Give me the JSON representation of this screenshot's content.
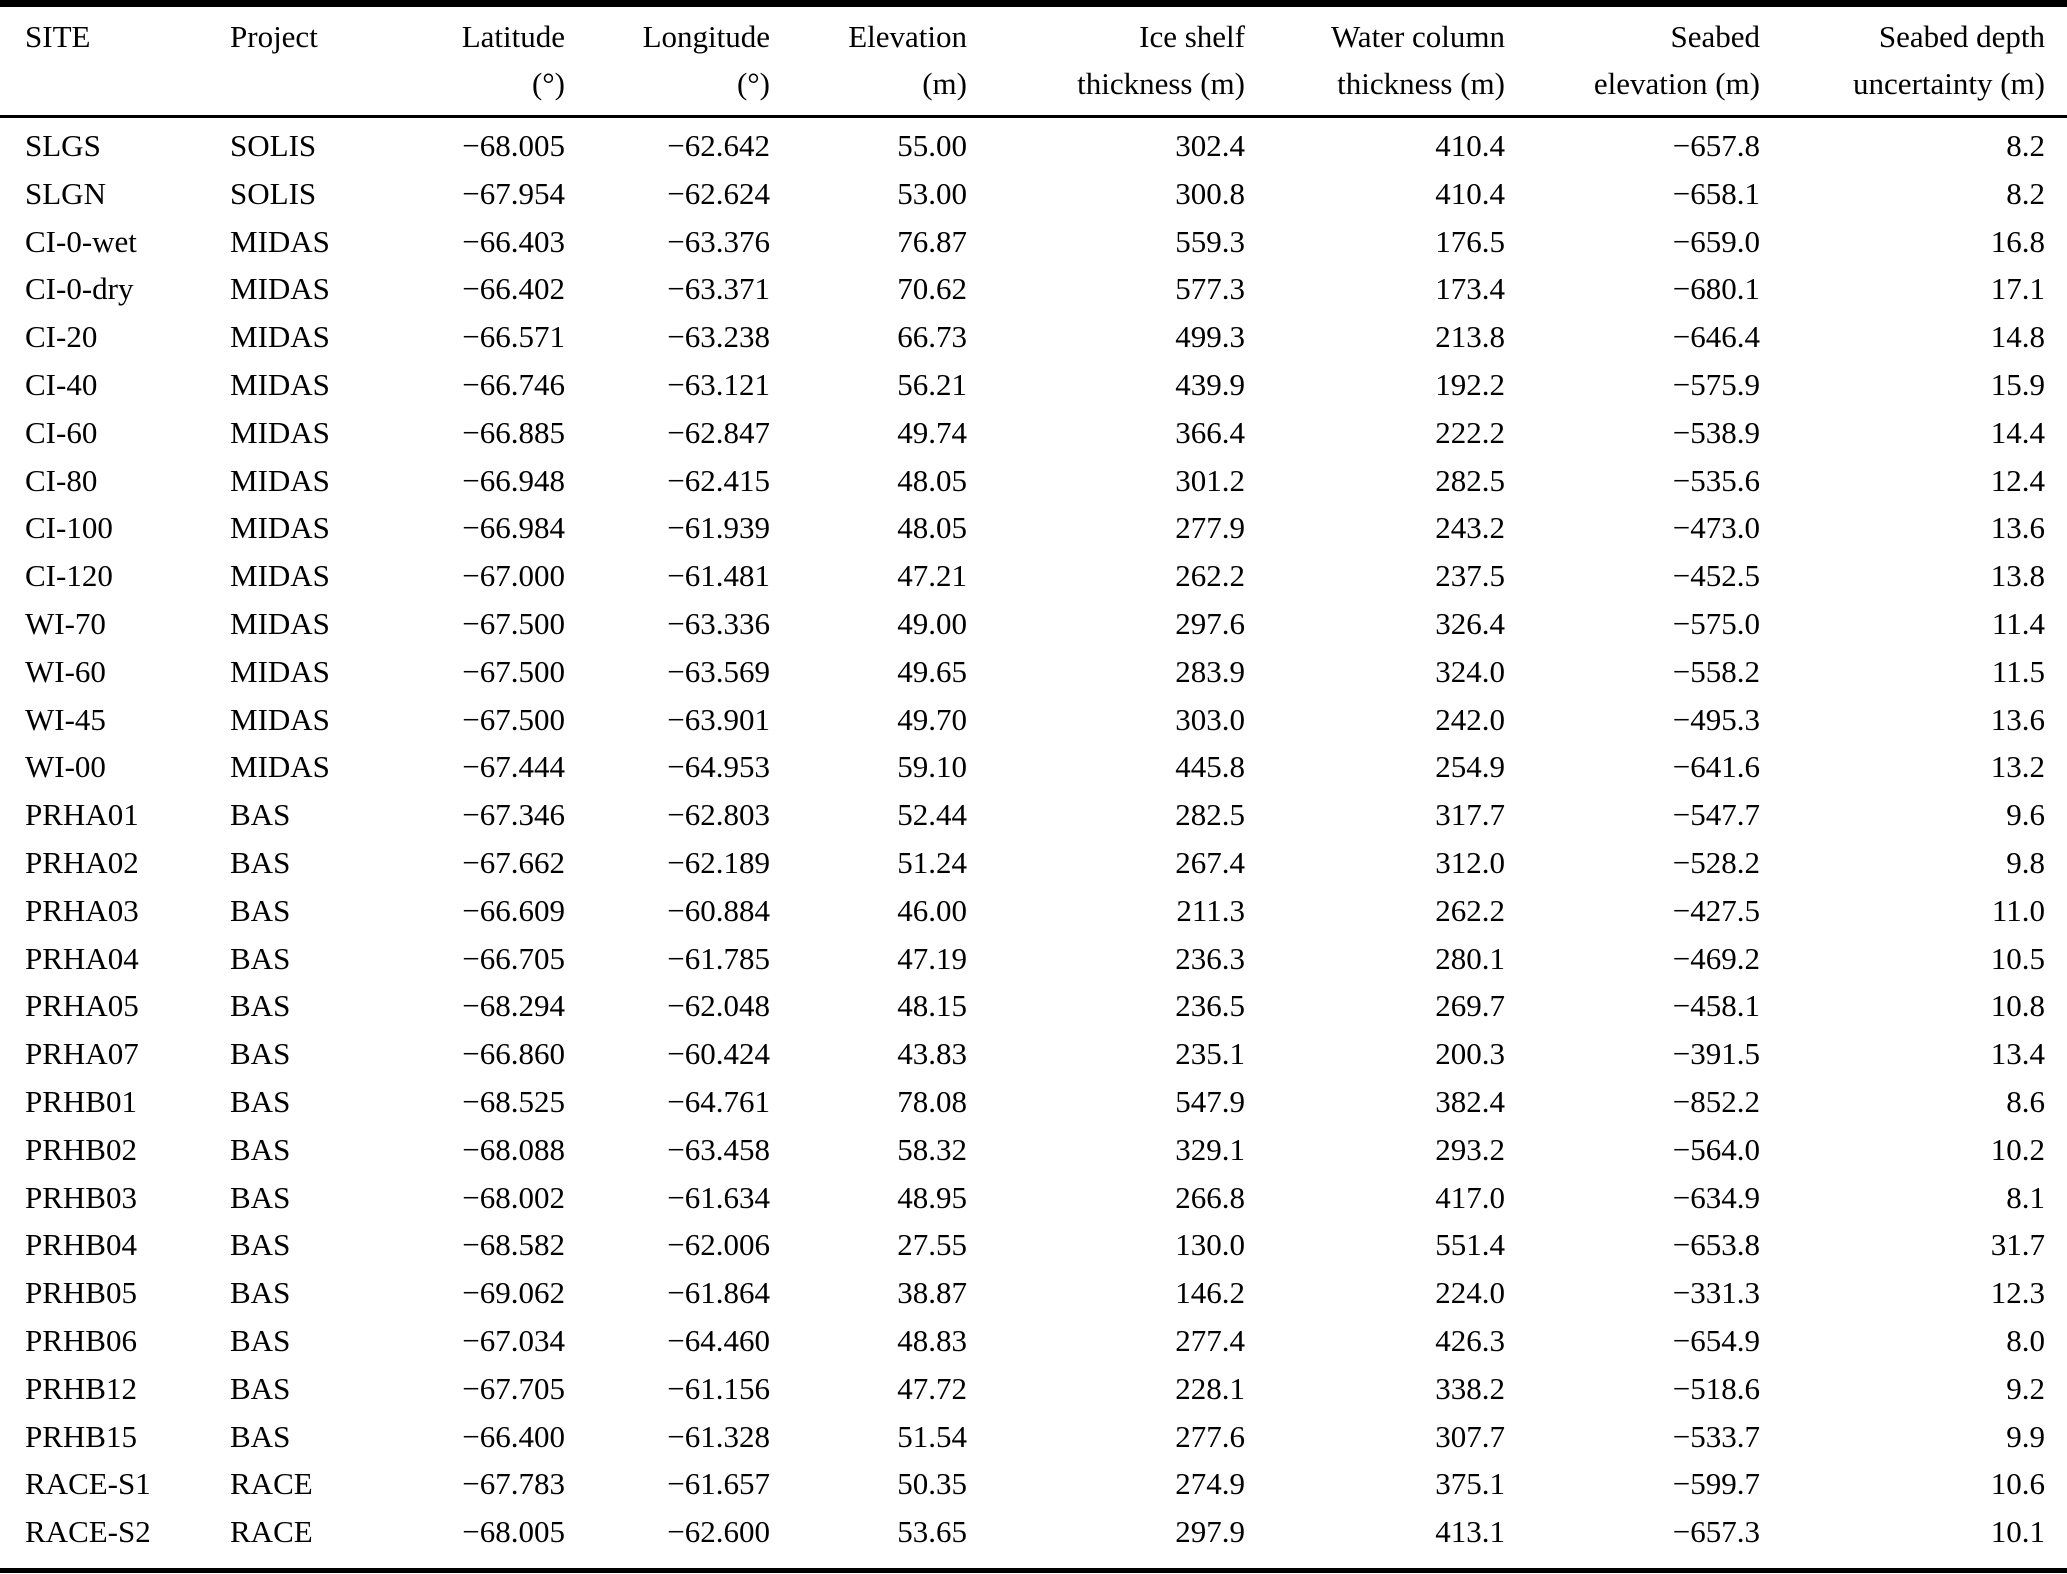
{
  "page": {
    "background": "#ffffff",
    "text_color": "#000000",
    "rule_color": "#000000"
  },
  "table": {
    "columns": [
      {
        "id": "site",
        "line1": "SITE",
        "line2": "",
        "align": "left"
      },
      {
        "id": "project",
        "line1": "Project",
        "line2": "",
        "align": "left"
      },
      {
        "id": "latitude",
        "line1": "Latitude",
        "line2": "(°)",
        "align": "right"
      },
      {
        "id": "longitude",
        "line1": "Longitude",
        "line2": "(°)",
        "align": "right"
      },
      {
        "id": "elevation",
        "line1": "Elevation",
        "line2": "(m)",
        "align": "right"
      },
      {
        "id": "ice-shelf-thickness",
        "line1": "Ice shelf",
        "line2": "thickness (m)",
        "align": "right"
      },
      {
        "id": "water-column-thickness",
        "line1": "Water column",
        "line2": "thickness (m)",
        "align": "right"
      },
      {
        "id": "seabed-elevation",
        "line1": "Seabed",
        "line2": "elevation (m)",
        "align": "right"
      },
      {
        "id": "seabed-depth-uncertainty",
        "line1": "Seabed depth",
        "line2": "uncertainty (m)",
        "align": "right"
      }
    ],
    "rows": [
      [
        "SLGS",
        "SOLIS",
        "−68.005",
        "−62.642",
        "55.00",
        "302.4",
        "410.4",
        "−657.8",
        "8.2"
      ],
      [
        "SLGN",
        "SOLIS",
        "−67.954",
        "−62.624",
        "53.00",
        "300.8",
        "410.4",
        "−658.1",
        "8.2"
      ],
      [
        "CI-0-wet",
        "MIDAS",
        "−66.403",
        "−63.376",
        "76.87",
        "559.3",
        "176.5",
        "−659.0",
        "16.8"
      ],
      [
        "CI-0-dry",
        "MIDAS",
        "−66.402",
        "−63.371",
        "70.62",
        "577.3",
        "173.4",
        "−680.1",
        "17.1"
      ],
      [
        "CI-20",
        "MIDAS",
        "−66.571",
        "−63.238",
        "66.73",
        "499.3",
        "213.8",
        "−646.4",
        "14.8"
      ],
      [
        "CI-40",
        "MIDAS",
        "−66.746",
        "−63.121",
        "56.21",
        "439.9",
        "192.2",
        "−575.9",
        "15.9"
      ],
      [
        "CI-60",
        "MIDAS",
        "−66.885",
        "−62.847",
        "49.74",
        "366.4",
        "222.2",
        "−538.9",
        "14.4"
      ],
      [
        "CI-80",
        "MIDAS",
        "−66.948",
        "−62.415",
        "48.05",
        "301.2",
        "282.5",
        "−535.6",
        "12.4"
      ],
      [
        "CI-100",
        "MIDAS",
        "−66.984",
        "−61.939",
        "48.05",
        "277.9",
        "243.2",
        "−473.0",
        "13.6"
      ],
      [
        "CI-120",
        "MIDAS",
        "−67.000",
        "−61.481",
        "47.21",
        "262.2",
        "237.5",
        "−452.5",
        "13.8"
      ],
      [
        "WI-70",
        "MIDAS",
        "−67.500",
        "−63.336",
        "49.00",
        "297.6",
        "326.4",
        "−575.0",
        "11.4"
      ],
      [
        "WI-60",
        "MIDAS",
        "−67.500",
        "−63.569",
        "49.65",
        "283.9",
        "324.0",
        "−558.2",
        "11.5"
      ],
      [
        "WI-45",
        "MIDAS",
        "−67.500",
        "−63.901",
        "49.70",
        "303.0",
        "242.0",
        "−495.3",
        "13.6"
      ],
      [
        "WI-00",
        "MIDAS",
        "−67.444",
        "−64.953",
        "59.10",
        "445.8",
        "254.9",
        "−641.6",
        "13.2"
      ],
      [
        "PRHA01",
        "BAS",
        "−67.346",
        "−62.803",
        "52.44",
        "282.5",
        "317.7",
        "−547.7",
        "9.6"
      ],
      [
        "PRHA02",
        "BAS",
        "−67.662",
        "−62.189",
        "51.24",
        "267.4",
        "312.0",
        "−528.2",
        "9.8"
      ],
      [
        "PRHA03",
        "BAS",
        "−66.609",
        "−60.884",
        "46.00",
        "211.3",
        "262.2",
        "−427.5",
        "11.0"
      ],
      [
        "PRHA04",
        "BAS",
        "−66.705",
        "−61.785",
        "47.19",
        "236.3",
        "280.1",
        "−469.2",
        "10.5"
      ],
      [
        "PRHA05",
        "BAS",
        "−68.294",
        "−62.048",
        "48.15",
        "236.5",
        "269.7",
        "−458.1",
        "10.8"
      ],
      [
        "PRHA07",
        "BAS",
        "−66.860",
        "−60.424",
        "43.83",
        "235.1",
        "200.3",
        "−391.5",
        "13.4"
      ],
      [
        "PRHB01",
        "BAS",
        "−68.525",
        "−64.761",
        "78.08",
        "547.9",
        "382.4",
        "−852.2",
        "8.6"
      ],
      [
        "PRHB02",
        "BAS",
        "−68.088",
        "−63.458",
        "58.32",
        "329.1",
        "293.2",
        "−564.0",
        "10.2"
      ],
      [
        "PRHB03",
        "BAS",
        "−68.002",
        "−61.634",
        "48.95",
        "266.8",
        "417.0",
        "−634.9",
        "8.1"
      ],
      [
        "PRHB04",
        "BAS",
        "−68.582",
        "−62.006",
        "27.55",
        "130.0",
        "551.4",
        "−653.8",
        "31.7"
      ],
      [
        "PRHB05",
        "BAS",
        "−69.062",
        "−61.864",
        "38.87",
        "146.2",
        "224.0",
        "−331.3",
        "12.3"
      ],
      [
        "PRHB06",
        "BAS",
        "−67.034",
        "−64.460",
        "48.83",
        "277.4",
        "426.3",
        "−654.9",
        "8.0"
      ],
      [
        "PRHB12",
        "BAS",
        "−67.705",
        "−61.156",
        "47.72",
        "228.1",
        "338.2",
        "−518.6",
        "9.2"
      ],
      [
        "PRHB15",
        "BAS",
        "−66.400",
        "−61.328",
        "51.54",
        "277.6",
        "307.7",
        "−533.7",
        "9.9"
      ],
      [
        "RACE-S1",
        "RACE",
        "−67.783",
        "−61.657",
        "50.35",
        "274.9",
        "375.1",
        "−599.7",
        "10.6"
      ],
      [
        "RACE-S2",
        "RACE",
        "−68.005",
        "−62.600",
        "53.65",
        "297.9",
        "413.1",
        "−657.3",
        "10.1"
      ]
    ]
  }
}
